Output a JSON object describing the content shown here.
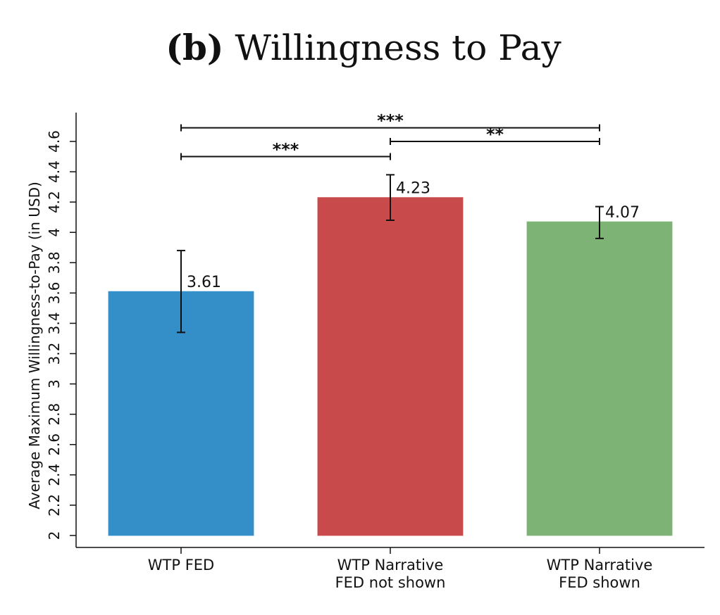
{
  "chart_data": {
    "type": "bar",
    "title_prefix": "(b)",
    "title": "Willingness to Pay",
    "xlabel": "",
    "ylabel": "Average Maximum Willingness-to-Pay (in USD)",
    "ylim": [
      2,
      4.6
    ],
    "yticks": [
      "2",
      "2.2",
      "2.4",
      "2.6",
      "2.8",
      "3",
      "3.2",
      "3.4",
      "3.6",
      "3.8",
      "4",
      "4.2",
      "4.4",
      "4.6"
    ],
    "grid": false,
    "categories": [
      [
        "WTP FED"
      ],
      [
        "WTP Narrative",
        "FED not shown"
      ],
      [
        "WTP Narrative",
        "FED shown"
      ]
    ],
    "values": [
      3.61,
      4.23,
      4.07
    ],
    "value_labels": [
      "3.61",
      "4.23",
      "4.07"
    ],
    "error_bars": [
      [
        3.34,
        3.88
      ],
      [
        4.08,
        4.38
      ],
      [
        3.96,
        4.17
      ]
    ],
    "colors": [
      "#348fc9",
      "#c84a4a",
      "#7db374"
    ],
    "significance": [
      {
        "from": 0,
        "to": 2,
        "y": 4.69,
        "label": "***"
      },
      {
        "from": 1,
        "to": 2,
        "y": 4.6,
        "label": "**"
      },
      {
        "from": 0,
        "to": 1,
        "y": 4.5,
        "label": "***"
      }
    ]
  }
}
